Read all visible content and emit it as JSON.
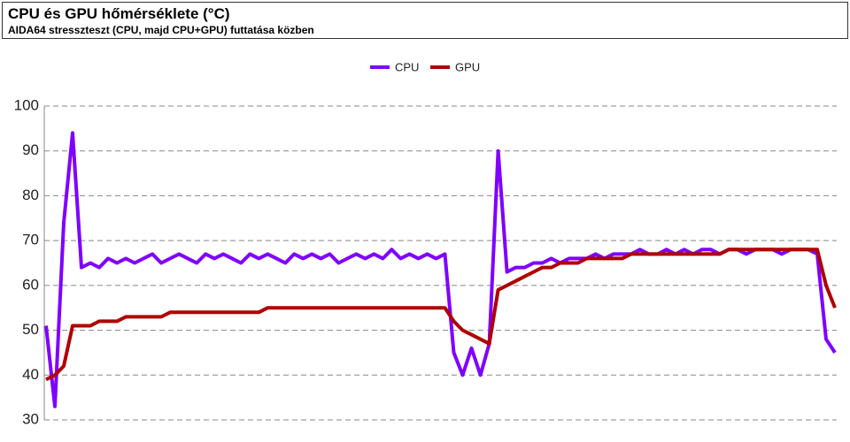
{
  "chart_data": {
    "type": "line",
    "title": "CPU és GPU hőmérséklete (°C)",
    "subtitle": "AIDA64 stresszteszt (CPU, majd CPU+GPU) futtatása közben",
    "series": [
      {
        "name": "CPU",
        "color": "#7f00ff",
        "values": [
          51,
          33,
          74,
          94,
          64,
          65,
          64,
          66,
          65,
          66,
          65,
          66,
          67,
          65,
          66,
          67,
          66,
          65,
          67,
          66,
          67,
          66,
          65,
          67,
          66,
          67,
          66,
          65,
          67,
          66,
          67,
          66,
          67,
          65,
          66,
          67,
          66,
          67,
          66,
          68,
          66,
          67,
          66,
          67,
          66,
          67,
          45,
          40,
          46,
          40,
          47,
          90,
          63,
          64,
          64,
          65,
          65,
          66,
          65,
          66,
          66,
          66,
          67,
          66,
          67,
          67,
          67,
          68,
          67,
          67,
          68,
          67,
          68,
          67,
          68,
          68,
          67,
          68,
          68,
          67,
          68,
          68,
          68,
          67,
          68,
          68,
          68,
          67,
          48,
          45
        ]
      },
      {
        "name": "GPU",
        "color": "#b00000",
        "values": [
          39,
          40,
          42,
          51,
          51,
          51,
          52,
          52,
          52,
          53,
          53,
          53,
          53,
          53,
          54,
          54,
          54,
          54,
          54,
          54,
          54,
          54,
          54,
          54,
          54,
          55,
          55,
          55,
          55,
          55,
          55,
          55,
          55,
          55,
          55,
          55,
          55,
          55,
          55,
          55,
          55,
          55,
          55,
          55,
          55,
          55,
          52,
          50,
          49,
          48,
          47,
          59,
          60,
          61,
          62,
          63,
          64,
          64,
          65,
          65,
          65,
          66,
          66,
          66,
          66,
          66,
          67,
          67,
          67,
          67,
          67,
          67,
          67,
          67,
          67,
          67,
          67,
          68,
          68,
          68,
          68,
          68,
          68,
          68,
          68,
          68,
          68,
          68,
          60,
          55
        ]
      }
    ],
    "ylim": [
      30,
      100
    ],
    "yticks": [
      30,
      40,
      50,
      60,
      70,
      80,
      90,
      100
    ],
    "grid": true,
    "legend": "top"
  }
}
